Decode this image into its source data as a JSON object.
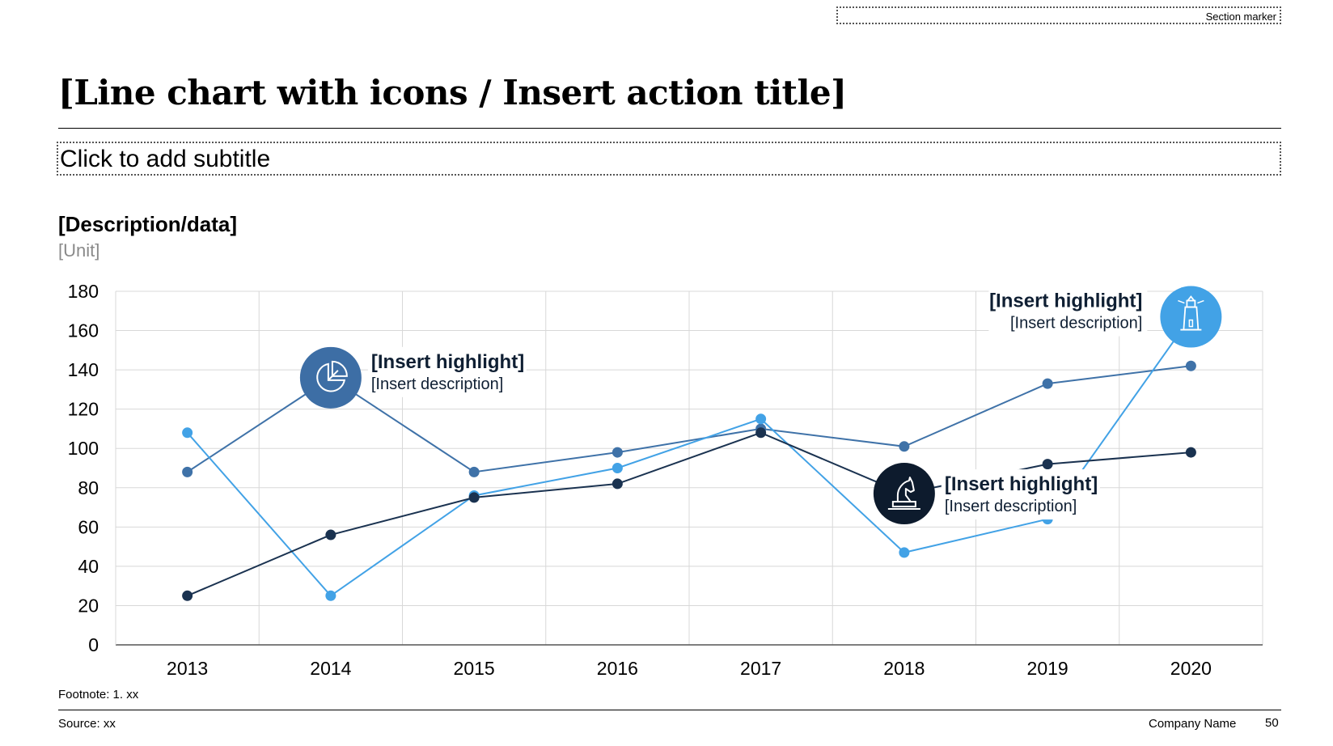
{
  "section_marker": "Section marker",
  "title": "[Line chart with icons / Insert action title]",
  "subtitle": "Click to add subtitle",
  "footer": {
    "footnote": "Footnote: 1. xx",
    "source": "Source: xx",
    "company": "Company Name",
    "page": "50"
  },
  "colors": {
    "series_mid": "#3f72a8",
    "series_light": "#42a2e6",
    "series_dark": "#1a3250",
    "icon_mid": "#3d6ea5",
    "icon_light": "#42a2e6",
    "icon_dark": "#0d1b2d",
    "grid": "#d8d8d8"
  },
  "highlights": [
    {
      "title": "[Insert highlight]",
      "description": "[Insert description]",
      "icon": "pie-chart-icon",
      "year": "2014"
    },
    {
      "title": "[Insert highlight]",
      "description": "[Insert description]",
      "icon": "chess-knight-icon",
      "year": "2018"
    },
    {
      "title": "[Insert highlight]",
      "description": "[Insert description]",
      "icon": "lighthouse-icon",
      "year": "2020"
    }
  ],
  "chart_data": {
    "type": "line",
    "title": "[Description/data]",
    "ylabel": "[Unit]",
    "xlabel": "",
    "categories": [
      "2013",
      "2014",
      "2015",
      "2016",
      "2017",
      "2018",
      "2019",
      "2020"
    ],
    "ylim": [
      0,
      180
    ],
    "yticks": [
      0,
      20,
      40,
      60,
      80,
      100,
      120,
      140,
      160,
      180
    ],
    "grid": true,
    "legend": "none",
    "series": [
      {
        "color": "#3f72a8",
        "values": [
          88,
          136,
          88,
          98,
          110,
          101,
          133,
          142
        ]
      },
      {
        "color": "#42a2e6",
        "values": [
          108,
          25,
          76,
          90,
          115,
          47,
          64,
          167
        ]
      },
      {
        "color": "#1a3250",
        "values": [
          25,
          56,
          75,
          82,
          108,
          77,
          92,
          98
        ]
      }
    ]
  }
}
